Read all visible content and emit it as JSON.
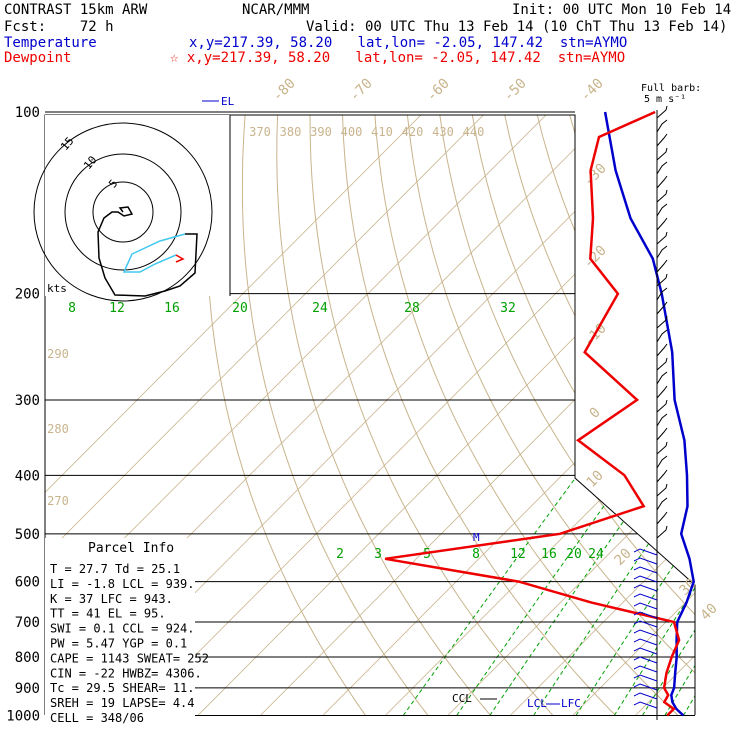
{
  "header": {
    "model": "CONTRAST 15km ARW",
    "org": "NCAR/MMM",
    "init": "Init: 00 UTC Mon 10 Feb 14",
    "fcst": "Fcst:    72 h",
    "valid": "Valid: 00 UTC Thu 13 Feb 14 (10 ChT Thu 13 Feb 14)",
    "temp_label": "Temperature",
    "temp_loc": "x,y=217.39, 58.20   lat,lon= -2.05, 147.42  stn=AYMO",
    "dew_label": "Dewpoint",
    "dew_loc": "☆ x,y=217.39, 58.20   lat,lon= -2.05, 147.42  stn=AYMO",
    "barb_title": "Full barb:",
    "barb_unit": "5 m s⁻¹"
  },
  "colors": {
    "temperature": "#0000cc",
    "dewpoint": "#ee0000",
    "dry_adiabat": "#c8b48c",
    "mixing_ratio": "#00a000",
    "hodo_low": "#000000",
    "hodo_mid": "#40c8f0",
    "hodo_high": "#ee0000"
  },
  "chart_data": {
    "type": "line",
    "pressure_ticks": [
      100,
      200,
      300,
      400,
      500,
      600,
      700,
      800,
      900,
      1000
    ],
    "isotherm_labels": [
      -80,
      -70,
      -60,
      -50,
      -40,
      -30,
      -20,
      -10,
      0,
      10,
      20,
      30,
      40
    ],
    "theta_labels_top": [
      370,
      380,
      390,
      400,
      410,
      420,
      430,
      440
    ],
    "theta_labels_left": [
      290,
      280,
      270
    ],
    "mixing_labels_upper": [
      8,
      12,
      16,
      20,
      24,
      28,
      32
    ],
    "mixing_labels_lower": [
      2,
      3,
      5,
      8,
      12,
      16,
      20,
      24
    ],
    "hodograph_ring_labels": [
      15,
      10,
      5
    ],
    "hodograph_unit": "kts",
    "level_markers": {
      "el": "EL",
      "m": "M",
      "ccl": "CCL",
      "lcl": "LCL",
      "lfc": "LFC"
    },
    "series": [
      {
        "name": "Temperature",
        "points": [
          [
            1000,
            27.7
          ],
          [
            975,
            25.5
          ],
          [
            950,
            23.8
          ],
          [
            925,
            22.5
          ],
          [
            900,
            21.8
          ],
          [
            850,
            19.6
          ],
          [
            800,
            17.3
          ],
          [
            750,
            14.6
          ],
          [
            700,
            11.8
          ],
          [
            650,
            10.2
          ],
          [
            600,
            8.0
          ],
          [
            550,
            3.7
          ],
          [
            500,
            -1.6
          ],
          [
            450,
            -5.0
          ],
          [
            400,
            -10.0
          ],
          [
            350,
            -16.0
          ],
          [
            300,
            -24.0
          ],
          [
            250,
            -32.0
          ],
          [
            200,
            -43.0
          ],
          [
            175,
            -50.0
          ],
          [
            150,
            -60.0
          ],
          [
            125,
            -70.0
          ],
          [
            100,
            -81.0
          ]
        ]
      },
      {
        "name": "Dewpoint",
        "points": [
          [
            1000,
            25.1
          ],
          [
            975,
            25.1
          ],
          [
            950,
            22.5
          ],
          [
            925,
            22.0
          ],
          [
            900,
            20.2
          ],
          [
            850,
            18.2
          ],
          [
            800,
            16.5
          ],
          [
            750,
            15.0
          ],
          [
            700,
            11.3
          ],
          [
            650,
            -5.0
          ],
          [
            600,
            -20.0
          ],
          [
            550,
            -45.0
          ],
          [
            500,
            -21.0
          ],
          [
            450,
            -12.0
          ],
          [
            400,
            -20.0
          ],
          [
            350,
            -33.0
          ],
          [
            300,
            -30.0
          ],
          [
            250,
            -46.0
          ],
          [
            200,
            -50.0
          ],
          [
            175,
            -60.0
          ],
          [
            150,
            -66.0
          ],
          [
            125,
            -74.0
          ],
          [
            110,
            -78.0
          ],
          [
            100,
            -73.0
          ]
        ]
      }
    ]
  },
  "parcel": {
    "title": "Parcel Info",
    "rows": [
      "T  =   27.7 Td =  25.1",
      "LI =   -1.8 LCL =  939.",
      "K  =     37 LFC =  943.",
      "TT =     41 EL  =   95.",
      "SWI =   0.1 CCL =  924.",
      "PW =   5.47 YGP =   0.1",
      "CAPE =  1143 SWEAT=  252",
      "CIN =    -22 HWBZ= 4306.",
      "Tc =   29.5 SHEAR=  11.",
      "SREH =   19 LAPSE=  4.4",
      "CELL = 348/06"
    ]
  }
}
